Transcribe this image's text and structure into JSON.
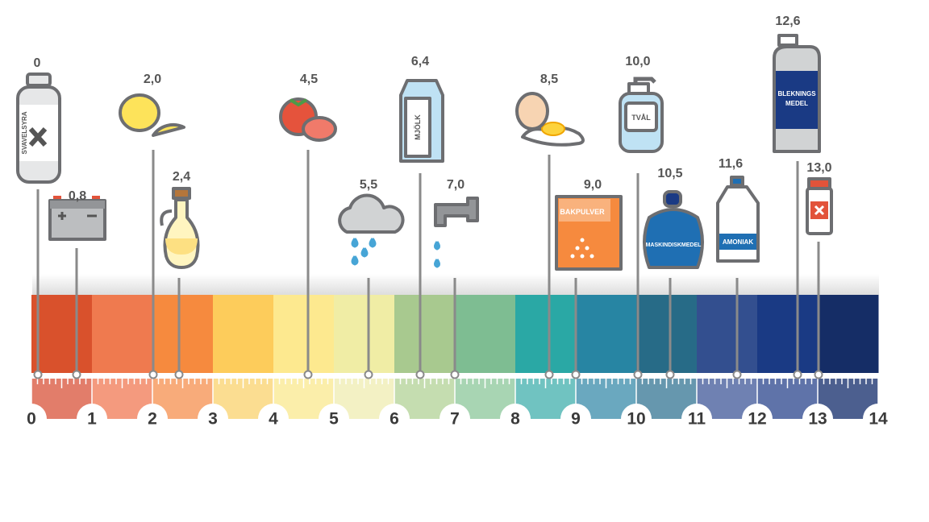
{
  "scale_labels": [
    "0",
    "1",
    "2",
    "3",
    "4",
    "5",
    "6",
    "7",
    "8",
    "9",
    "10",
    "11",
    "12",
    "13",
    "14"
  ],
  "items": [
    {
      "value": "0",
      "label": "SVAVELSYRA"
    },
    {
      "value": "0,8"
    },
    {
      "value": "2,0"
    },
    {
      "value": "2,4"
    },
    {
      "value": "4,5"
    },
    {
      "value": "5,5"
    },
    {
      "value": "6,4",
      "label": "MJÖLK"
    },
    {
      "value": "7,0"
    },
    {
      "value": "8,5"
    },
    {
      "value": "9,0",
      "label": "BAKPULVER"
    },
    {
      "value": "10,0",
      "label": "TVÅL"
    },
    {
      "value": "10,5",
      "label": "MASKINDISKMEDEL"
    },
    {
      "value": "11,6",
      "label": "AMONIAK"
    },
    {
      "value": "12,6",
      "label_lines": [
        "BLEKNINGS",
        "MEDEL"
      ]
    },
    {
      "value": "13,0"
    }
  ]
}
